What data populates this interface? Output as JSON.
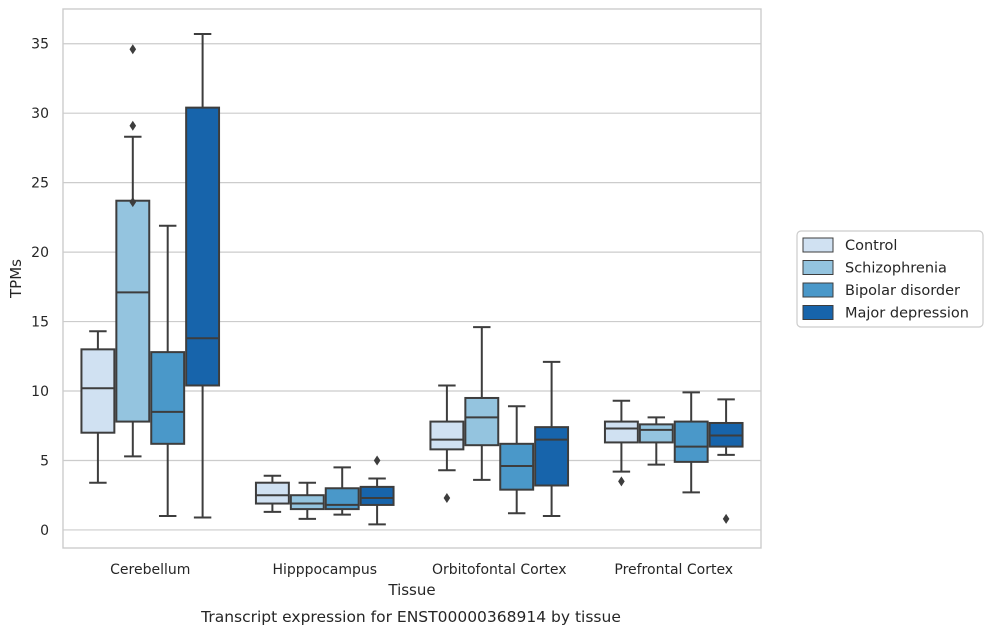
{
  "caption": "Transcript expression for ENST00000368914 by tissue",
  "chart_data": {
    "type": "box",
    "title": "",
    "xlabel": "Tissue",
    "ylabel": "TPMs",
    "ylim": [
      -1.3,
      37.5
    ],
    "yticks": [
      0,
      5,
      10,
      15,
      20,
      25,
      30,
      35
    ],
    "grid": "horizontal",
    "legend_position": "right",
    "categories": [
      "Cerebellum",
      "Hipppocampus",
      "Orbitofontal Cortex",
      "Prefrontal Cortex"
    ],
    "series": [
      {
        "name": "Control",
        "color": "#d0e1f2",
        "boxes": [
          {
            "whisker_low": 3.4,
            "q1": 7.0,
            "median": 10.2,
            "q3": 13.0,
            "whisker_high": 14.3,
            "outliers": []
          },
          {
            "whisker_low": 1.3,
            "q1": 1.9,
            "median": 2.5,
            "q3": 3.4,
            "whisker_high": 3.9,
            "outliers": []
          },
          {
            "whisker_low": 4.3,
            "q1": 5.8,
            "median": 6.5,
            "q3": 7.8,
            "whisker_high": 10.4,
            "outliers": [
              2.3
            ]
          },
          {
            "whisker_low": 4.2,
            "q1": 6.3,
            "median": 7.3,
            "q3": 7.8,
            "whisker_high": 9.3,
            "outliers": [
              3.5
            ]
          }
        ]
      },
      {
        "name": "Schizophrenia",
        "color": "#94c4df",
        "boxes": [
          {
            "whisker_low": 5.3,
            "q1": 7.8,
            "median": 17.1,
            "q3": 23.7,
            "whisker_high": 28.3,
            "outliers": [
              23.6,
              29.1,
              34.6
            ]
          },
          {
            "whisker_low": 0.8,
            "q1": 1.5,
            "median": 1.9,
            "q3": 2.5,
            "whisker_high": 3.4,
            "outliers": []
          },
          {
            "whisker_low": 3.6,
            "q1": 6.1,
            "median": 8.1,
            "q3": 9.5,
            "whisker_high": 14.6,
            "outliers": []
          },
          {
            "whisker_low": 4.7,
            "q1": 6.3,
            "median": 7.2,
            "q3": 7.6,
            "whisker_high": 8.1,
            "outliers": []
          }
        ]
      },
      {
        "name": "Bipolar disorder",
        "color": "#4a98c9",
        "boxes": [
          {
            "whisker_low": 1.0,
            "q1": 6.2,
            "median": 8.5,
            "q3": 12.8,
            "whisker_high": 21.9,
            "outliers": []
          },
          {
            "whisker_low": 1.1,
            "q1": 1.5,
            "median": 1.8,
            "q3": 3.0,
            "whisker_high": 4.5,
            "outliers": []
          },
          {
            "whisker_low": 1.2,
            "q1": 2.9,
            "median": 4.6,
            "q3": 6.2,
            "whisker_high": 8.9,
            "outliers": []
          },
          {
            "whisker_low": 2.7,
            "q1": 4.9,
            "median": 6.0,
            "q3": 7.8,
            "whisker_high": 9.9,
            "outliers": []
          }
        ]
      },
      {
        "name": "Major depression",
        "color": "#1764ab",
        "boxes": [
          {
            "whisker_low": 0.9,
            "q1": 10.4,
            "median": 13.8,
            "q3": 30.4,
            "whisker_high": 35.7,
            "outliers": []
          },
          {
            "whisker_low": 0.4,
            "q1": 1.8,
            "median": 2.3,
            "q3": 3.1,
            "whisker_high": 3.7,
            "outliers": [
              5.0
            ]
          },
          {
            "whisker_low": 1.0,
            "q1": 3.2,
            "median": 6.5,
            "q3": 7.4,
            "whisker_high": 12.1,
            "outliers": []
          },
          {
            "whisker_low": 5.4,
            "q1": 6.0,
            "median": 6.8,
            "q3": 7.7,
            "whisker_high": 9.4,
            "outliers": [
              0.8
            ]
          }
        ]
      }
    ]
  }
}
